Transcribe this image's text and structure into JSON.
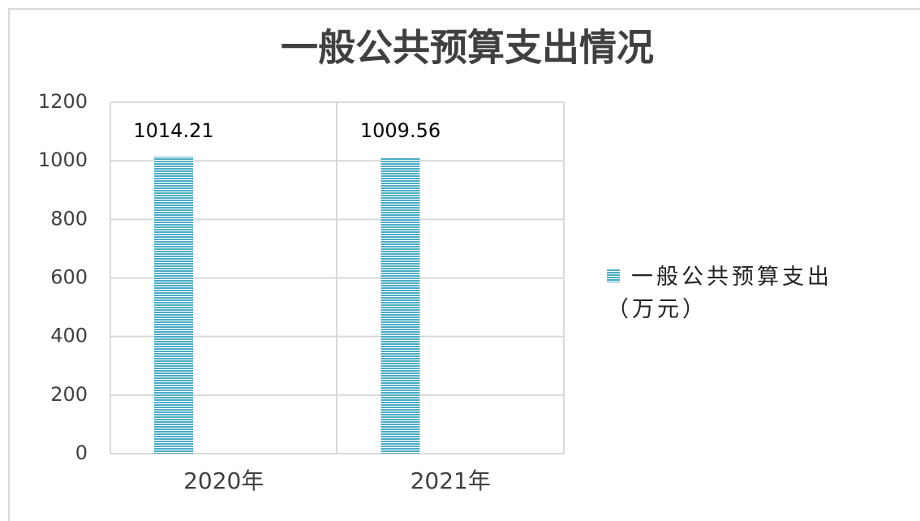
{
  "chart_data": {
    "type": "bar",
    "title": "一般公共预算支出情况",
    "categories": [
      "2020年",
      "2021年"
    ],
    "series": [
      {
        "name": "一般公共预算支出（万元）",
        "color": "#4bacc6",
        "values": [
          1014.21,
          1009.56
        ]
      }
    ],
    "ylim": [
      0,
      1200
    ],
    "yticks": [
      0,
      200,
      400,
      600,
      800,
      1000,
      1200
    ],
    "grid": true,
    "legend": "right"
  }
}
